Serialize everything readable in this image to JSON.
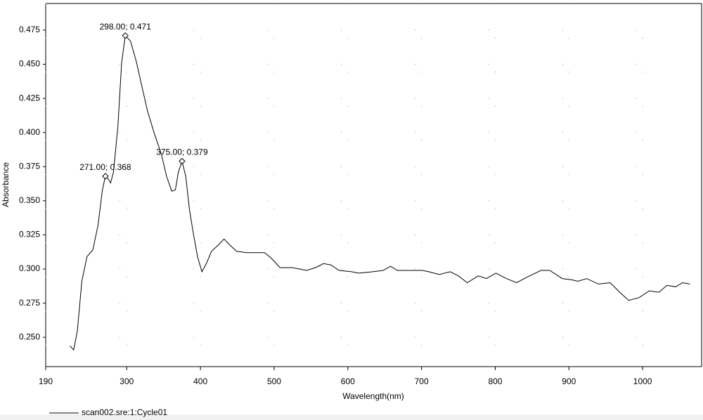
{
  "chart_data": {
    "type": "line",
    "xlabel": "Wavelength(nm)",
    "ylabel": "Absorbance",
    "xlim": [
      190,
      1080
    ],
    "ylim": [
      0.2285,
      0.4945
    ],
    "xticks": [
      190,
      300,
      400,
      500,
      600,
      700,
      800,
      900,
      1000
    ],
    "yticks": [
      {
        "value": 0.25,
        "label": "0.250"
      },
      {
        "value": 0.275,
        "label": "0.275"
      },
      {
        "value": 0.3,
        "label": "0.300"
      },
      {
        "value": 0.325,
        "label": "0.325"
      },
      {
        "value": 0.35,
        "label": "0.350"
      },
      {
        "value": 0.375,
        "label": "0.375"
      },
      {
        "value": 0.4,
        "label": "0.400"
      },
      {
        "value": 0.425,
        "label": "0.425"
      },
      {
        "value": 0.45,
        "label": "0.450"
      },
      {
        "value": 0.475,
        "label": "0.475"
      }
    ],
    "grid": true,
    "series": [
      {
        "name": "scan002.sre:1:Cycle01",
        "color": "#000000",
        "x": [
          223,
          228,
          233,
          239,
          246,
          254,
          261,
          267,
          271,
          275,
          278,
          282,
          288,
          293,
          298,
          305,
          313,
          320,
          328,
          337,
          347,
          354,
          361,
          366,
          370,
          375,
          380,
          385,
          390,
          396,
          402,
          408,
          415,
          425,
          432,
          439,
          449,
          463,
          487,
          496,
          508,
          525,
          544,
          556,
          567,
          577,
          588,
          605,
          615,
          634,
          648,
          658,
          667,
          682,
          701,
          710,
          724,
          739,
          750,
          762,
          777,
          788,
          801,
          815,
          829,
          843,
          862,
          874,
          891,
          905,
          912,
          924,
          940,
          956,
          969,
          981,
          995,
          1009,
          1022,
          1033,
          1045,
          1054,
          1064
        ],
        "values": [
          0.2438,
          0.2407,
          0.255,
          0.291,
          0.309,
          0.314,
          0.332,
          0.358,
          0.368,
          0.366,
          0.363,
          0.371,
          0.4045,
          0.451,
          0.471,
          0.467,
          0.452,
          0.435,
          0.416,
          0.4,
          0.384,
          0.368,
          0.357,
          0.358,
          0.371,
          0.379,
          0.368,
          0.344,
          0.327,
          0.309,
          0.298,
          0.304,
          0.313,
          0.318,
          0.322,
          0.318,
          0.313,
          0.312,
          0.312,
          0.308,
          0.301,
          0.301,
          0.299,
          0.301,
          0.304,
          0.303,
          0.299,
          0.298,
          0.297,
          0.298,
          0.299,
          0.302,
          0.299,
          0.299,
          0.299,
          0.298,
          0.296,
          0.298,
          0.295,
          0.29,
          0.295,
          0.293,
          0.297,
          0.293,
          0.29,
          0.294,
          0.299,
          0.299,
          0.293,
          0.292,
          0.291,
          0.293,
          0.289,
          0.29,
          0.283,
          0.277,
          0.279,
          0.284,
          0.283,
          0.288,
          0.287,
          0.29,
          0.289
        ]
      }
    ],
    "annotations": [
      {
        "x": 271,
        "y": 0.368,
        "label": "271.00; 0.368"
      },
      {
        "x": 298,
        "y": 0.471,
        "label": "298.00; 0.471"
      },
      {
        "x": 375,
        "y": 0.379,
        "label": "375.00; 0.379"
      }
    ]
  }
}
